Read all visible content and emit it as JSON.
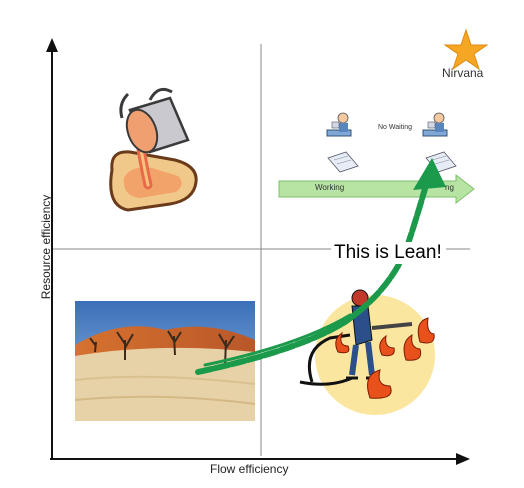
{
  "axes": {
    "x_label": "Flow efficiency",
    "y_label": "Resource efficiency"
  },
  "annotations": {
    "nirvana": "Nirvana",
    "callout": "This is Lean!",
    "no_waiting": "No Waiting",
    "working": "Working",
    "working_partial": "ng"
  },
  "colors": {
    "star": "#f5a623",
    "arrow": "#1a9a4a",
    "working_bar": "#b7e3a3",
    "fire": "#e8501c",
    "fire_circle": "#fbe6a0"
  },
  "icons": [
    "paint-can-pour-icon",
    "desert-photo",
    "firefighter-icon",
    "worker-at-desk-icon",
    "document-icon",
    "star-icon"
  ]
}
